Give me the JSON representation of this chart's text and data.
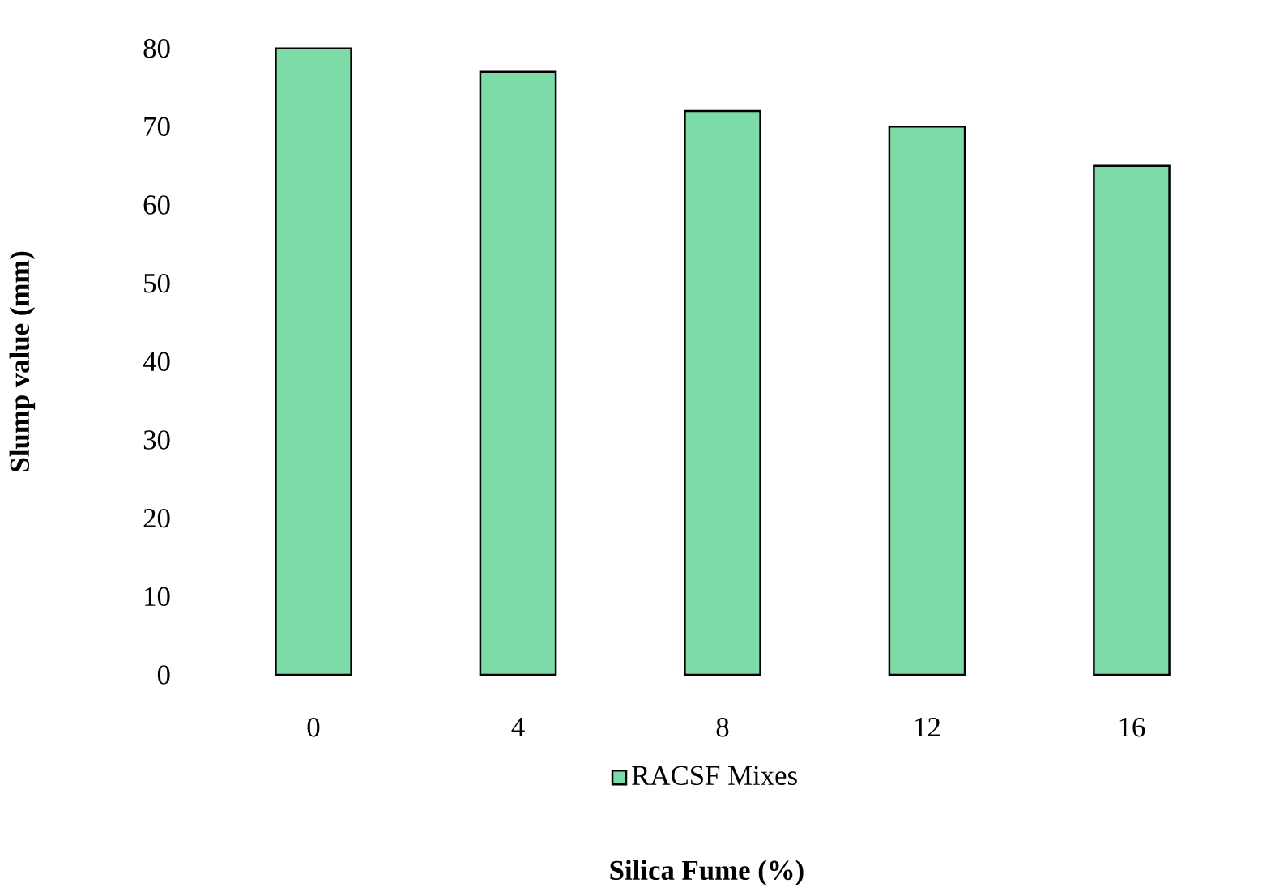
{
  "chart_data": {
    "type": "bar",
    "categories": [
      "0",
      "4",
      "8",
      "12",
      "16"
    ],
    "xlabel": "Silica Fume (%)",
    "ylabel": "Slump value (mm)",
    "series": [
      {
        "name": "RACSF Mixes",
        "color": "#7ddba8",
        "values": [
          80,
          77,
          72,
          70,
          65
        ]
      }
    ],
    "ylim": [
      0,
      80
    ],
    "yticks": [
      0,
      10,
      20,
      30,
      40,
      50,
      60,
      70,
      80
    ],
    "legend": "bottom",
    "grid": false
  }
}
